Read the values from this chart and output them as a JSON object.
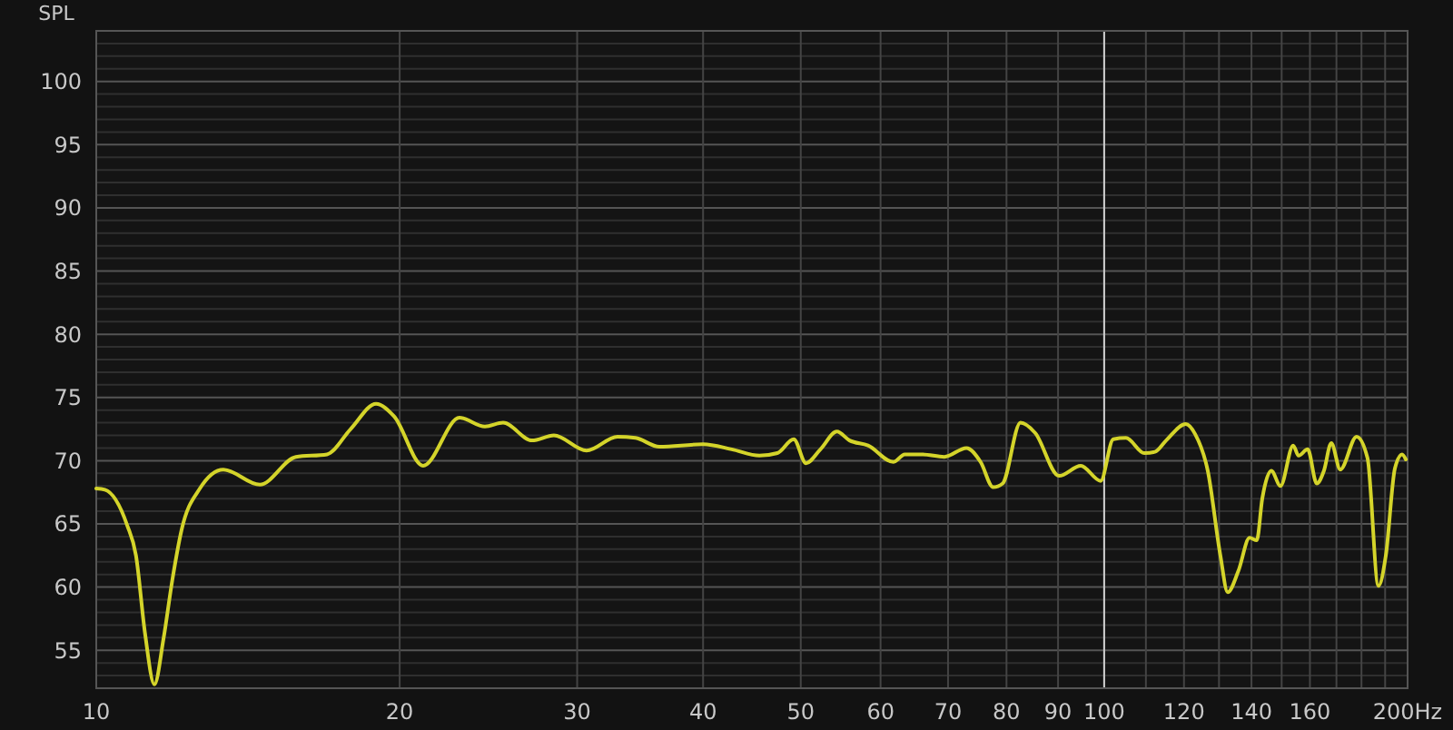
{
  "chart_data": {
    "type": "line",
    "ylabel": "SPL",
    "log": "x",
    "grid": true,
    "xlim": [
      10,
      200
    ],
    "ylim": [
      52,
      104
    ],
    "xticks": [
      10,
      20,
      30,
      40,
      50,
      60,
      70,
      80,
      90,
      100,
      {
        "value": 110,
        "label": null
      },
      120,
      {
        "value": 130,
        "label": null
      },
      140,
      {
        "value": 150,
        "label": null
      },
      160,
      {
        "value": 170,
        "label": null
      },
      {
        "value": 180,
        "label": null
      },
      {
        "value": 190,
        "label": null
      },
      {
        "value": 200,
        "label": "200Hz"
      }
    ],
    "yticks": [
      {
        "value": 53,
        "label": null
      },
      {
        "value": 54,
        "label": null
      },
      55,
      {
        "value": 56,
        "label": null
      },
      {
        "value": 57,
        "label": null
      },
      {
        "value": 58,
        "label": null
      },
      {
        "value": 59,
        "label": null
      },
      60,
      {
        "value": 61,
        "label": null
      },
      {
        "value": 62,
        "label": null
      },
      {
        "value": 63,
        "label": null
      },
      {
        "value": 64,
        "label": null
      },
      65,
      {
        "value": 66,
        "label": null
      },
      {
        "value": 67,
        "label": null
      },
      {
        "value": 68,
        "label": null
      },
      {
        "value": 69,
        "label": null
      },
      70,
      {
        "value": 71,
        "label": null
      },
      {
        "value": 72,
        "label": null
      },
      {
        "value": 73,
        "label": null
      },
      {
        "value": 74,
        "label": null
      },
      75,
      {
        "value": 76,
        "label": null
      },
      {
        "value": 77,
        "label": null
      },
      {
        "value": 78,
        "label": null
      },
      {
        "value": 79,
        "label": null
      },
      80,
      {
        "value": 81,
        "label": null
      },
      {
        "value": 82,
        "label": null
      },
      {
        "value": 83,
        "label": null
      },
      {
        "value": 84,
        "label": null
      },
      85,
      {
        "value": 86,
        "label": null
      },
      {
        "value": 87,
        "label": null
      },
      {
        "value": 88,
        "label": null
      },
      {
        "value": 89,
        "label": null
      },
      90,
      {
        "value": 91,
        "label": null
      },
      {
        "value": 92,
        "label": null
      },
      {
        "value": 93,
        "label": null
      },
      {
        "value": 94,
        "label": null
      },
      95,
      {
        "value": 96,
        "label": null
      },
      {
        "value": 97,
        "label": null
      },
      {
        "value": 98,
        "label": null
      },
      {
        "value": 99,
        "label": null
      },
      100,
      {
        "value": 101,
        "label": null
      },
      {
        "value": 102,
        "label": null
      },
      {
        "value": 103,
        "label": null
      },
      {
        "value": 104,
        "label": null
      }
    ],
    "ref_lines": [
      {
        "axis": "x",
        "value": 100,
        "color": "#d0d0d0"
      }
    ],
    "series": [
      {
        "color": "#d4d42a",
        "x": [
          10,
          10.2,
          10.73,
          10.95,
          11.18,
          11.42,
          11.66,
          11.9,
          12.15,
          12.67,
          13.37,
          14.53,
          15.78,
          16.94,
          17.88,
          18.95,
          19.75,
          21.1,
          22.93,
          24.3,
          25.33,
          27.06,
          28.45,
          30.65,
          32.89,
          34.28,
          36.2,
          40,
          42.7,
          45.5,
          47.4,
          49.2,
          50.6,
          52.3,
          54.3,
          55.9,
          58.3,
          61.8,
          63.4,
          66,
          69.4,
          73,
          75.4,
          77.6,
          79.3,
          82.6,
          85.4,
          90.2,
          94.8,
          99.2,
          102.1,
          105.1,
          109.6,
          112.3,
          115.2,
          120.5,
          123.1,
          126.7,
          130.4,
          132.6,
          135.9,
          139.4,
          141.7,
          143.5,
          146.5,
          149.6,
          154,
          155.9,
          159.2,
          162.5,
          165.2,
          168,
          171.5,
          178,
          182.5,
          187.1,
          190.3,
          194.3,
          197.5,
          199.2
        ],
        "values": [
          67.8,
          67.7,
          64.9,
          62.5,
          56.3,
          52.3,
          55.9,
          60.6,
          64.5,
          67.8,
          69.3,
          68.1,
          70.3,
          70.5,
          72.5,
          74.5,
          73.5,
          69.6,
          73.4,
          72.7,
          73,
          71.6,
          72,
          70.8,
          71.9,
          71.8,
          71.1,
          71.3,
          70.9,
          70.4,
          70.6,
          71.7,
          69.8,
          70.9,
          72.3,
          71.6,
          71.2,
          69.9,
          70.5,
          70.5,
          70.3,
          71,
          69.9,
          67.9,
          68.2,
          73,
          72.2,
          68.8,
          69.6,
          68.4,
          71.7,
          71.8,
          70.6,
          70.7,
          71.6,
          72.9,
          72.1,
          69.2,
          62.5,
          59.6,
          61.3,
          63.9,
          63.7,
          67,
          69.2,
          68,
          71.2,
          70.4,
          70.9,
          68.2,
          69.2,
          71.4,
          69.3,
          71.9,
          70.2,
          60.1,
          62.5,
          69.4,
          70.5,
          70.1
        ]
      }
    ]
  }
}
